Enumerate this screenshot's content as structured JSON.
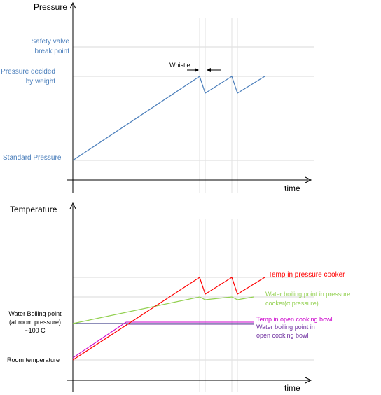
{
  "pressure_panel": {
    "y_axis_label": "Pressure",
    "x_axis_label": "time",
    "level_safety_valve": "Safety valve\nbreak point",
    "level_weight": "Pressure decided\nby weight",
    "level_standard": "Standard Pressure",
    "whistle_label": "Whistle"
  },
  "temperature_panel": {
    "y_axis_label": "Temperature",
    "x_axis_label": "time",
    "level_water_boiling": "Water Boiling point\n(at room pressure)\n~100 C",
    "level_room": "Room temperature",
    "series_temp_cooker": "Temp in pressure  cooker",
    "series_boil_cooker": "Water boiling point in pressure\ncooker(α pressure)",
    "series_temp_bowl": "Temp in open cooking bowl",
    "series_boil_bowl": "Water boiling point in\nopen cooking bowl"
  },
  "colors": {
    "axis": "#000000",
    "label_blue": "#4a7ebb",
    "pressure_line": "#4a7ebb",
    "gridline": "#d9d9d9",
    "temp_cooker": "#ff0000",
    "boil_cooker": "#92d050",
    "temp_bowl": "#cc00cc",
    "boil_bowl": "#7030a0",
    "ref_line": "#4a4a90"
  }
}
